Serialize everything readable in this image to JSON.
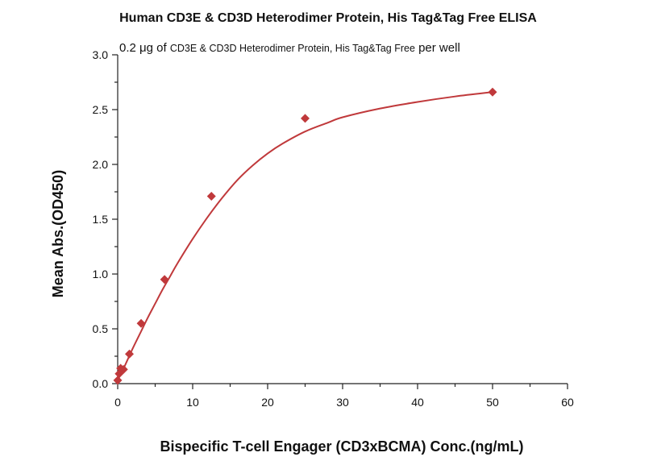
{
  "chart_data": {
    "type": "scatter",
    "title": "Human CD3E & CD3D Heterodimer Protein, His Tag&Tag Free ELISA",
    "subtitle": {
      "part1": "0.2 μg of ",
      "part2": "CD3E & CD3D Heterodimer Protein, His Tag&Tag Free",
      "part3": " per well"
    },
    "xlabel": "Bispecific T-cell Engager (CD3xBCMA) Conc.(ng/mL)",
    "ylabel": "Mean Abs.(OD450)",
    "xlim": [
      0,
      60
    ],
    "ylim": [
      0,
      3.0
    ],
    "xticks": [
      "0",
      "10",
      "20",
      "30",
      "40",
      "50",
      "60"
    ],
    "yticks": [
      "0.0",
      "0.5",
      "1.0",
      "1.5",
      "2.0",
      "2.5",
      "3.0"
    ],
    "grid": false,
    "color": "#c0393b",
    "series": [
      {
        "x": [
          0,
          0.195,
          0.39,
          0.78,
          1.56,
          3.125,
          6.25,
          12.5,
          25,
          50
        ],
        "y": [
          0.03,
          0.09,
          0.14,
          0.13,
          0.27,
          0.55,
          0.95,
          1.71,
          2.42,
          2.66
        ]
      }
    ],
    "fit_curve": {
      "x": [
        0,
        0.5,
        1,
        2,
        3,
        4,
        5,
        6,
        7,
        8,
        10,
        12,
        14,
        16,
        18,
        20,
        22,
        25,
        28,
        30,
        35,
        40,
        45,
        50
      ],
      "y": [
        0.03,
        0.1,
        0.17,
        0.32,
        0.46,
        0.6,
        0.73,
        0.86,
        0.98,
        1.1,
        1.32,
        1.52,
        1.7,
        1.86,
        1.99,
        2.1,
        2.19,
        2.3,
        2.38,
        2.43,
        2.51,
        2.57,
        2.62,
        2.66
      ]
    }
  }
}
